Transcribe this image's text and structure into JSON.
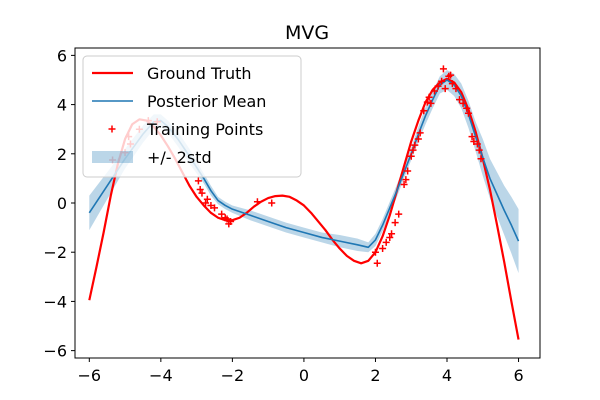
{
  "chart_data": {
    "type": "line",
    "title": "MVG",
    "xlabel": "",
    "ylabel": "",
    "xlim": [
      -6.4,
      6.6
    ],
    "ylim": [
      -6.3,
      6.3
    ],
    "xticks": [
      -6,
      -4,
      -2,
      0,
      2,
      4,
      6
    ],
    "yticks": [
      -6,
      -4,
      -2,
      0,
      2,
      4,
      6
    ],
    "xtick_labels": [
      "−6",
      "−4",
      "−2",
      "0",
      "2",
      "4",
      "6"
    ],
    "ytick_labels": [
      "−6",
      "−4",
      "−2",
      "0",
      "2",
      "4",
      "6"
    ],
    "legend_position": "top-left",
    "series": [
      {
        "name": "Ground Truth",
        "kind": "line",
        "color": "#ff0000",
        "x": [
          -6.0,
          -5.8,
          -5.6,
          -5.4,
          -5.2,
          -5.0,
          -4.8,
          -4.6,
          -4.4,
          -4.2,
          -4.0,
          -3.8,
          -3.6,
          -3.4,
          -3.2,
          -3.0,
          -2.8,
          -2.6,
          -2.4,
          -2.2,
          -2.0,
          -1.8,
          -1.6,
          -1.4,
          -1.2,
          -1.0,
          -0.8,
          -0.6,
          -0.4,
          -0.2,
          0.0,
          0.2,
          0.4,
          0.6,
          0.8,
          1.0,
          1.2,
          1.4,
          1.6,
          1.8,
          2.0,
          2.2,
          2.4,
          2.6,
          2.8,
          3.0,
          3.2,
          3.4,
          3.6,
          3.8,
          4.0,
          4.2,
          4.4,
          4.6,
          4.8,
          5.0,
          5.2,
          5.4,
          5.6,
          5.8,
          6.0
        ],
        "y": [
          -3.95,
          -2.6,
          -1.2,
          0.3,
          1.6,
          2.6,
          3.2,
          3.4,
          3.35,
          3.1,
          2.75,
          2.3,
          1.8,
          1.25,
          0.7,
          0.25,
          -0.1,
          -0.4,
          -0.6,
          -0.7,
          -0.7,
          -0.6,
          -0.4,
          -0.15,
          0.05,
          0.2,
          0.28,
          0.3,
          0.25,
          0.1,
          -0.1,
          -0.4,
          -0.75,
          -1.1,
          -1.5,
          -1.85,
          -2.15,
          -2.35,
          -2.45,
          -2.35,
          -2.0,
          -1.35,
          -0.5,
          0.5,
          1.5,
          2.5,
          3.35,
          4.1,
          4.6,
          4.9,
          5.05,
          4.9,
          4.5,
          3.8,
          2.9,
          1.8,
          0.55,
          -0.9,
          -2.4,
          -4.0,
          -5.55
        ]
      },
      {
        "name": "Posterior Mean",
        "kind": "line",
        "color": "#1f77b4",
        "x": [
          -6.0,
          -5.5,
          -5.0,
          -4.5,
          -4.2,
          -4.0,
          -3.8,
          -3.5,
          -3.2,
          -3.0,
          -2.8,
          -2.6,
          -2.4,
          -2.2,
          -2.0,
          -1.5,
          -1.0,
          -0.5,
          0.0,
          0.5,
          1.0,
          1.5,
          1.8,
          2.0,
          2.2,
          2.4,
          2.6,
          2.8,
          3.0,
          3.2,
          3.4,
          3.6,
          3.8,
          4.0,
          4.2,
          4.4,
          4.6,
          4.8,
          5.0,
          5.2,
          5.4,
          5.6,
          5.8,
          6.0
        ],
        "y": [
          -0.4,
          0.7,
          1.8,
          2.8,
          3.3,
          3.35,
          3.1,
          2.55,
          1.9,
          1.45,
          1.0,
          0.5,
          0.1,
          -0.1,
          -0.25,
          -0.5,
          -0.75,
          -1.0,
          -1.2,
          -1.4,
          -1.55,
          -1.7,
          -1.8,
          -1.5,
          -0.9,
          -0.2,
          0.5,
          1.25,
          2.0,
          2.8,
          3.55,
          4.2,
          4.8,
          5.0,
          4.8,
          4.35,
          3.6,
          2.7,
          1.85,
          1.0,
          0.35,
          -0.3,
          -0.9,
          -1.55
        ]
      },
      {
        "name": "Training Points",
        "kind": "scatter",
        "color": "#ff0000",
        "x": [
          -5.35,
          -5.0,
          -4.9,
          -4.85,
          -4.6,
          -4.35,
          -4.1,
          -2.95,
          -2.9,
          -2.85,
          -2.75,
          -2.7,
          -2.6,
          -2.5,
          -2.3,
          -2.2,
          -2.15,
          -2.1,
          -2.05,
          -1.3,
          -0.9,
          2.0,
          2.05,
          2.2,
          2.3,
          2.4,
          2.45,
          2.55,
          2.65,
          2.8,
          2.85,
          2.9,
          3.0,
          3.05,
          3.1,
          3.2,
          3.25,
          3.35,
          3.45,
          3.5,
          3.55,
          3.65,
          3.75,
          3.85,
          3.9,
          3.95,
          4.05,
          4.1,
          4.15,
          4.25,
          4.35,
          4.45,
          4.55,
          4.6,
          4.7,
          4.75,
          4.85,
          4.9,
          4.95
        ],
        "y": [
          1.75,
          2.05,
          2.7,
          2.4,
          3.0,
          3.35,
          3.3,
          0.9,
          0.55,
          0.4,
          0.0,
          0.15,
          -0.1,
          -0.2,
          -0.45,
          -0.6,
          -0.65,
          -0.85,
          -0.75,
          0.05,
          0.0,
          -2.0,
          -2.45,
          -1.85,
          -1.6,
          -1.4,
          -1.25,
          -0.8,
          -0.45,
          0.75,
          0.95,
          1.3,
          1.9,
          2.15,
          2.35,
          2.6,
          2.85,
          3.75,
          4.1,
          4.3,
          4.05,
          4.55,
          4.75,
          4.95,
          5.45,
          4.65,
          5.15,
          5.2,
          4.85,
          4.65,
          4.2,
          4.05,
          3.85,
          3.65,
          2.7,
          2.5,
          2.4,
          2.15,
          1.8
        ]
      },
      {
        "name": "+/- 2std",
        "kind": "band",
        "color": "#1f77b4",
        "alpha": 0.3,
        "x": [
          -6.0,
          -5.5,
          -5.0,
          -4.5,
          -4.2,
          -4.0,
          -3.8,
          -3.5,
          -3.2,
          -3.0,
          -2.8,
          -2.6,
          -2.4,
          -2.2,
          -2.0,
          -1.5,
          -1.0,
          -0.5,
          0.0,
          0.5,
          1.0,
          1.5,
          1.8,
          2.0,
          2.2,
          2.4,
          2.6,
          2.8,
          3.0,
          3.2,
          3.4,
          3.6,
          3.8,
          4.0,
          4.2,
          4.4,
          4.6,
          4.8,
          5.0,
          5.2,
          5.4,
          5.6,
          5.8,
          6.0
        ],
        "lower": [
          -1.1,
          0.15,
          1.4,
          2.45,
          3.0,
          3.1,
          2.85,
          2.25,
          1.6,
          1.2,
          0.8,
          0.3,
          -0.05,
          -0.25,
          -0.4,
          -0.7,
          -0.95,
          -1.2,
          -1.4,
          -1.6,
          -1.8,
          -1.95,
          -2.0,
          -1.75,
          -1.15,
          -0.45,
          0.25,
          1.0,
          1.75,
          2.5,
          3.2,
          3.85,
          4.45,
          4.6,
          4.35,
          3.85,
          3.05,
          2.1,
          1.1,
          0.2,
          -0.55,
          -1.3,
          -2.05,
          -2.85
        ],
        "upper": [
          0.3,
          1.25,
          2.2,
          3.15,
          3.6,
          3.6,
          3.35,
          2.85,
          2.2,
          1.7,
          1.2,
          0.7,
          0.25,
          0.05,
          -0.1,
          -0.3,
          -0.55,
          -0.8,
          -1.0,
          -1.2,
          -1.3,
          -1.45,
          -1.6,
          -1.25,
          -0.65,
          0.05,
          0.75,
          1.5,
          2.25,
          3.1,
          3.9,
          4.55,
          5.15,
          5.4,
          5.25,
          4.85,
          4.15,
          3.3,
          2.6,
          1.8,
          1.25,
          0.7,
          0.25,
          -0.25
        ]
      }
    ]
  }
}
